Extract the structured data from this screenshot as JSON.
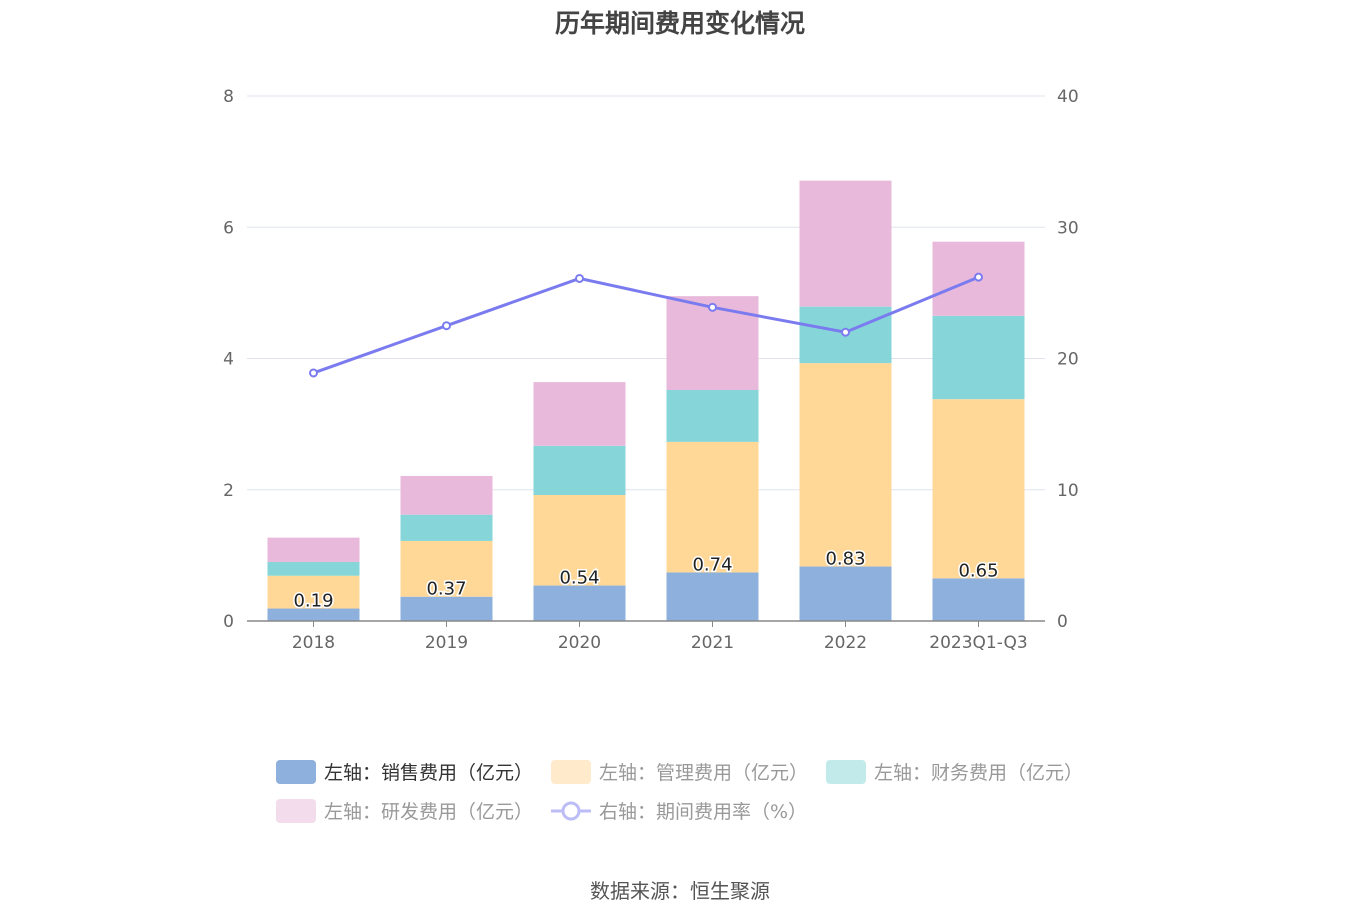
{
  "chart_data": {
    "type": "bar",
    "stacked": true,
    "title": "历年期间费用变化情况",
    "categories": [
      "2018",
      "2019",
      "2020",
      "2021",
      "2022",
      "2023Q1-Q3"
    ],
    "y_left": {
      "range": [
        0,
        8
      ],
      "ticks": [
        0,
        2,
        4,
        6,
        8
      ]
    },
    "y_right": {
      "range": [
        0,
        40
      ],
      "ticks": [
        0,
        10,
        20,
        30,
        40
      ]
    },
    "grid": true,
    "legend_position": "bottom",
    "series": [
      {
        "name": "左轴：销售费用（亿元）",
        "axis": "left",
        "type": "bar",
        "color": "#8eb0dc",
        "values": [
          0.19,
          0.37,
          0.54,
          0.74,
          0.83,
          0.65
        ],
        "labels": [
          "0.19",
          "0.37",
          "0.54",
          "0.74",
          "0.83",
          "0.65"
        ]
      },
      {
        "name": "左轴：管理费用（亿元）",
        "axis": "left",
        "type": "bar",
        "color": "#ffd898",
        "values": [
          0.5,
          0.85,
          1.38,
          1.99,
          3.1,
          2.73
        ]
      },
      {
        "name": "左轴：财务费用（亿元）",
        "axis": "left",
        "type": "bar",
        "color": "#86d5d8",
        "values": [
          0.21,
          0.4,
          0.75,
          0.79,
          0.86,
          1.27
        ]
      },
      {
        "name": "左轴：研发费用（亿元）",
        "axis": "left",
        "type": "bar",
        "color": "#e8b9da",
        "values": [
          0.37,
          0.59,
          0.97,
          1.43,
          1.92,
          1.13
        ]
      },
      {
        "name": "右轴：期间费用率（%）",
        "axis": "right",
        "type": "line",
        "color": "#7b7bf0",
        "values": [
          18.9,
          22.5,
          26.1,
          23.9,
          22.0,
          26.2
        ]
      }
    ],
    "source": "数据来源：恒生聚源"
  }
}
